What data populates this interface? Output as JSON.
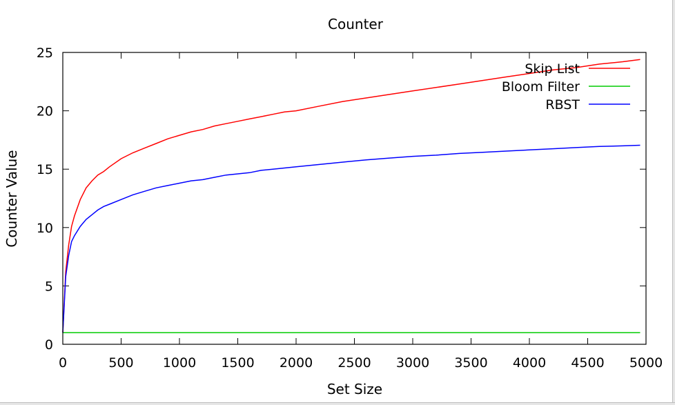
{
  "chart_data": {
    "type": "line",
    "title": "Counter",
    "xlabel": "Set Size",
    "ylabel": "Counter Value",
    "xlim": [
      0,
      5000
    ],
    "ylim": [
      0,
      25
    ],
    "xticks": [
      0,
      500,
      1000,
      1500,
      2000,
      2500,
      3000,
      3500,
      4000,
      4500,
      5000
    ],
    "yticks": [
      0,
      5,
      10,
      15,
      20,
      25
    ],
    "grid": false,
    "legend_position": "top-right",
    "series": [
      {
        "name": "Skip List",
        "color": "#ff0000",
        "x": [
          0,
          25,
          50,
          75,
          100,
          150,
          200,
          250,
          300,
          350,
          400,
          500,
          600,
          700,
          800,
          900,
          1000,
          1100,
          1200,
          1300,
          1400,
          1500,
          1600,
          1700,
          1800,
          1900,
          2000,
          2200,
          2400,
          2600,
          2800,
          3000,
          3200,
          3400,
          3600,
          3800,
          4000,
          4200,
          4400,
          4600,
          4800,
          4950
        ],
        "y": [
          1.0,
          6.2,
          8.5,
          10.1,
          11.0,
          12.4,
          13.4,
          14.0,
          14.5,
          14.8,
          15.2,
          15.9,
          16.4,
          16.8,
          17.2,
          17.6,
          17.9,
          18.2,
          18.4,
          18.7,
          18.9,
          19.1,
          19.3,
          19.5,
          19.7,
          19.9,
          20.0,
          20.4,
          20.8,
          21.1,
          21.4,
          21.7,
          22.0,
          22.3,
          22.6,
          22.9,
          23.2,
          23.5,
          23.7,
          24.0,
          24.2,
          24.4
        ]
      },
      {
        "name": "Bloom Filter",
        "color": "#00cc00",
        "x": [
          0,
          4950
        ],
        "y": [
          1.0,
          1.0
        ]
      },
      {
        "name": "RBST",
        "color": "#0000ff",
        "x": [
          0,
          25,
          50,
          75,
          100,
          150,
          200,
          250,
          300,
          350,
          400,
          500,
          600,
          700,
          800,
          900,
          1000,
          1100,
          1200,
          1300,
          1400,
          1500,
          1600,
          1700,
          1800,
          1900,
          2000,
          2200,
          2400,
          2600,
          2800,
          3000,
          3200,
          3400,
          3600,
          3800,
          4000,
          4200,
          4400,
          4600,
          4800,
          4950
        ],
        "y": [
          1.0,
          5.8,
          7.6,
          8.8,
          9.3,
          10.1,
          10.7,
          11.1,
          11.5,
          11.8,
          12.0,
          12.4,
          12.8,
          13.1,
          13.4,
          13.6,
          13.8,
          14.0,
          14.1,
          14.3,
          14.5,
          14.6,
          14.7,
          14.9,
          15.0,
          15.1,
          15.2,
          15.4,
          15.6,
          15.8,
          15.95,
          16.1,
          16.2,
          16.35,
          16.45,
          16.55,
          16.65,
          16.75,
          16.85,
          16.95,
          17.0,
          17.05
        ]
      }
    ]
  }
}
